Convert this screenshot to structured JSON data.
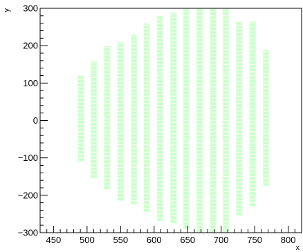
{
  "chart_data": {
    "type": "scatter",
    "title": "",
    "xlabel": "x",
    "ylabel": "y",
    "xlim": [
      430,
      820
    ],
    "ylim": [
      -300,
      300
    ],
    "x_ticks": [
      450,
      500,
      550,
      600,
      650,
      700,
      750,
      800
    ],
    "x_tick_labels": [
      "450",
      "500",
      "550",
      "600",
      "650",
      "700",
      "750",
      "800"
    ],
    "y_ticks": [
      -300,
      -200,
      -100,
      0,
      100,
      200,
      300
    ],
    "y_tick_labels": [
      "−300",
      "−200",
      "−100",
      "0",
      "100",
      "200",
      "300"
    ],
    "grid": false,
    "legend": "none",
    "marker_color": "#ccffcc",
    "column_width": 10,
    "cell_height": 10,
    "columns": [
      {
        "x_min": 486,
        "y_min": -110,
        "y_max": 120
      },
      {
        "x_min": 505,
        "y_min": -155,
        "y_max": 160
      },
      {
        "x_min": 525,
        "y_min": -185,
        "y_max": 200
      },
      {
        "x_min": 545,
        "y_min": -215,
        "y_max": 210
      },
      {
        "x_min": 565,
        "y_min": -225,
        "y_max": 230
      },
      {
        "x_min": 584,
        "y_min": -245,
        "y_max": 260
      },
      {
        "x_min": 604,
        "y_min": -270,
        "y_max": 280
      },
      {
        "x_min": 624,
        "y_min": -275,
        "y_max": 290
      },
      {
        "x_min": 643,
        "y_min": -290,
        "y_max": 300
      },
      {
        "x_min": 663,
        "y_min": -300,
        "y_max": 300
      },
      {
        "x_min": 683,
        "y_min": -300,
        "y_max": 300
      },
      {
        "x_min": 702,
        "y_min": -300,
        "y_max": 300
      },
      {
        "x_min": 722,
        "y_min": -255,
        "y_max": 265
      },
      {
        "x_min": 742,
        "y_min": -230,
        "y_max": 265
      },
      {
        "x_min": 762,
        "y_min": -175,
        "y_max": 190
      }
    ]
  }
}
